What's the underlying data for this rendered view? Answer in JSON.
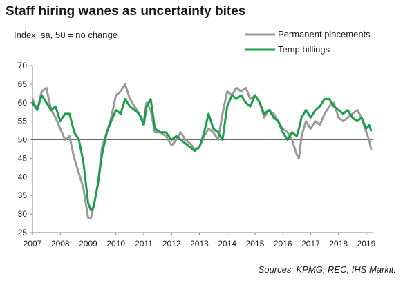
{
  "chart_data": {
    "type": "line",
    "title": "Staff hiring wanes as uncertainty bites",
    "subtitle": "Index, sa, 50 = no change",
    "source": "Sources: KPMG, REC, IHS Markit.",
    "xlim": [
      2007.0,
      2019.25
    ],
    "ylim": [
      25,
      70
    ],
    "y_ticks": [
      25,
      30,
      35,
      40,
      45,
      50,
      55,
      60,
      65,
      70
    ],
    "x_ticks": [
      "2007",
      "2008",
      "2009",
      "2010",
      "2011",
      "2012",
      "2013",
      "2014",
      "2015",
      "2016",
      "2017",
      "2018",
      "2019"
    ],
    "reference_line": 50,
    "legend_position": "top-right",
    "series": [
      {
        "name": "Permanent placements",
        "color": "#999999",
        "x": [
          2007.0,
          2007.17,
          2007.33,
          2007.5,
          2007.67,
          2007.83,
          2008.0,
          2008.17,
          2008.33,
          2008.5,
          2008.67,
          2008.83,
          2009.0,
          2009.1,
          2009.2,
          2009.35,
          2009.5,
          2009.67,
          2009.83,
          2010.0,
          2010.17,
          2010.33,
          2010.5,
          2010.67,
          2010.83,
          2011.0,
          2011.1,
          2011.25,
          2011.4,
          2011.6,
          2011.8,
          2012.0,
          2012.17,
          2012.33,
          2012.5,
          2012.67,
          2012.83,
          2013.0,
          2013.17,
          2013.33,
          2013.5,
          2013.67,
          2013.83,
          2014.0,
          2014.17,
          2014.33,
          2014.5,
          2014.67,
          2014.83,
          2015.0,
          2015.17,
          2015.33,
          2015.5,
          2015.67,
          2015.83,
          2016.0,
          2016.17,
          2016.33,
          2016.5,
          2016.58,
          2016.67,
          2016.83,
          2017.0,
          2017.17,
          2017.33,
          2017.5,
          2017.67,
          2017.83,
          2018.0,
          2018.17,
          2018.33,
          2018.5,
          2018.67,
          2018.83,
          2019.0,
          2019.1,
          2019.17
        ],
        "values": [
          61,
          58,
          63,
          64,
          58,
          56,
          53,
          50,
          51,
          45,
          41,
          37,
          29,
          29,
          32,
          38,
          48,
          52,
          56,
          62,
          63,
          65,
          61,
          59,
          57,
          55,
          60,
          58,
          52,
          52,
          51,
          48.5,
          50,
          52,
          50,
          49,
          47.5,
          48,
          51,
          53,
          52,
          50,
          57,
          63,
          62,
          64,
          63,
          64,
          61,
          62,
          60,
          56,
          58,
          57,
          55,
          53,
          52,
          50,
          46,
          45,
          51,
          55,
          53,
          55,
          54,
          57,
          59,
          60,
          56,
          55,
          56,
          57,
          58,
          56,
          52,
          50,
          47.5
        ]
      },
      {
        "name": "Temp billings",
        "color": "#1a9e4a",
        "x": [
          2007.0,
          2007.17,
          2007.33,
          2007.5,
          2007.67,
          2007.83,
          2008.0,
          2008.17,
          2008.33,
          2008.5,
          2008.67,
          2008.83,
          2009.0,
          2009.1,
          2009.2,
          2009.35,
          2009.5,
          2009.67,
          2009.83,
          2010.0,
          2010.17,
          2010.33,
          2010.5,
          2010.67,
          2010.83,
          2011.0,
          2011.1,
          2011.25,
          2011.4,
          2011.6,
          2011.8,
          2012.0,
          2012.17,
          2012.33,
          2012.5,
          2012.67,
          2012.83,
          2013.0,
          2013.17,
          2013.33,
          2013.5,
          2013.67,
          2013.83,
          2014.0,
          2014.17,
          2014.33,
          2014.5,
          2014.67,
          2014.83,
          2015.0,
          2015.17,
          2015.33,
          2015.5,
          2015.67,
          2015.83,
          2016.0,
          2016.17,
          2016.33,
          2016.5,
          2016.58,
          2016.67,
          2016.83,
          2017.0,
          2017.17,
          2017.33,
          2017.5,
          2017.67,
          2017.83,
          2018.0,
          2018.17,
          2018.33,
          2018.5,
          2018.67,
          2018.83,
          2019.0,
          2019.1,
          2019.17
        ],
        "values": [
          60,
          58,
          62,
          60,
          58,
          59,
          55,
          57,
          57,
          52,
          50,
          44,
          33,
          31,
          32,
          38,
          46,
          52,
          55,
          58,
          57,
          61,
          59,
          58,
          57,
          54,
          59,
          61,
          53,
          52,
          52,
          50,
          51,
          50,
          49,
          48,
          47,
          48,
          52,
          57,
          53,
          52,
          50,
          59,
          62,
          61,
          62,
          60,
          59,
          62,
          60,
          57,
          58,
          56,
          55,
          52,
          50,
          52,
          51,
          53,
          56,
          58,
          56,
          58,
          59,
          61,
          61,
          59,
          58,
          57,
          58,
          56,
          55,
          56,
          53,
          54,
          52.5
        ]
      }
    ]
  }
}
